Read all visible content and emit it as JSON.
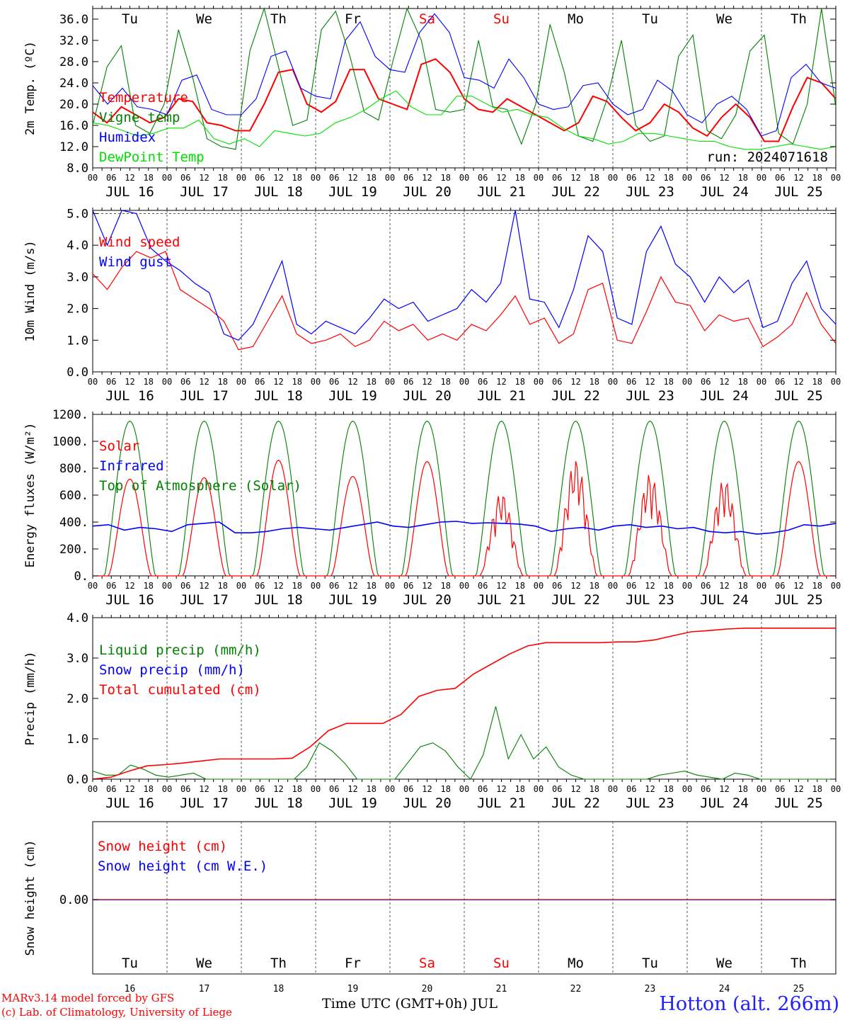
{
  "chart_data": [
    {
      "type": "line",
      "ylabel": "2m Temp. (ºC)",
      "ylim": [
        8,
        38
      ],
      "yticks": [
        "36.0",
        "32.0",
        "28.0",
        "24.0",
        "20.0",
        "16.0",
        "12.0",
        "8.0"
      ],
      "days": [
        "JUL 16",
        "JUL 17",
        "JUL 18",
        "JUL 19",
        "JUL 20",
        "JUL 21",
        "JUL 22",
        "JUL 23",
        "JUL 24",
        "JUL 25"
      ],
      "weekdays": [
        "Tu",
        "We",
        "Th",
        "Fr",
        "Sa",
        "Su",
        "Mo",
        "Tu",
        "We",
        "Th"
      ],
      "annotation": "run: 2024071618",
      "grid": "vertical dashed at 00 UTC",
      "series": [
        {
          "name": "Temperature",
          "color": "#ff0000",
          "values": [
            18.5,
            16.5,
            19.5,
            18.0,
            16.5,
            17.5,
            21.0,
            20.5,
            16.5,
            16.0,
            15.0,
            15.0,
            20.0,
            26.0,
            26.5,
            20.0,
            18.5,
            20.5,
            26.5,
            26.5,
            21.0,
            20.0,
            19.0,
            27.5,
            28.5,
            26.0,
            21.0,
            19.0,
            18.5,
            21.0,
            19.5,
            18.0,
            16.5,
            15.0,
            16.5,
            21.5,
            20.5,
            17.5,
            15.0,
            16.5,
            20.0,
            18.5,
            15.5,
            14.0,
            17.5,
            20.0,
            17.5,
            13.0,
            13.0,
            19.5,
            25.0,
            24.0,
            21.0
          ]
        },
        {
          "name": "Vigne temp",
          "color": "#008000",
          "values": [
            16.0,
            27.0,
            31.0,
            16.0,
            14.5,
            20.0,
            34.0,
            25.0,
            13.5,
            12.0,
            11.5,
            30.0,
            39.0,
            27.0,
            16.0,
            17.0,
            34.0,
            37.5,
            29.0,
            18.5,
            17.0,
            28.0,
            39.0,
            32.0,
            19.0,
            18.5,
            19.0,
            32.0,
            19.5,
            19.0,
            12.5,
            20.0,
            35.0,
            26.0,
            14.0,
            13.0,
            21.0,
            32.0,
            16.0,
            13.0,
            14.0,
            29.0,
            33.0,
            15.0,
            13.5,
            18.0,
            30.0,
            33.0,
            14.5,
            12.5,
            20.0,
            38.0,
            19.5
          ]
        },
        {
          "name": "Humidex",
          "color": "#0000ff",
          "values": [
            23.5,
            20.0,
            23.0,
            19.5,
            19.0,
            18.0,
            24.5,
            25.5,
            19.0,
            18.0,
            18.0,
            21.0,
            29.0,
            30.0,
            23.0,
            21.5,
            21.0,
            32.0,
            35.5,
            29.0,
            26.5,
            26.0,
            33.5,
            37.0,
            33.5,
            25.0,
            24.5,
            23.0,
            28.5,
            25.0,
            20.0,
            19.0,
            19.5,
            23.5,
            24.0,
            20.0,
            18.0,
            19.0,
            24.5,
            22.5,
            18.0,
            16.5,
            20.0,
            21.5,
            19.0,
            14.0,
            15.0,
            25.0,
            27.5,
            24.0,
            23.0
          ]
        },
        {
          "name": "DewPoint Temp",
          "color": "#00e000",
          "values": [
            16.5,
            16.0,
            15.0,
            14.0,
            14.5,
            15.5,
            15.5,
            17.0,
            13.5,
            12.5,
            13.5,
            12.0,
            15.0,
            14.5,
            14.0,
            14.5,
            16.5,
            17.5,
            19.0,
            21.0,
            22.5,
            19.5,
            18.0,
            18.0,
            21.5,
            21.5,
            20.0,
            18.5,
            19.0,
            18.0,
            17.5,
            15.5,
            14.0,
            13.5,
            12.5,
            13.0,
            14.5,
            14.5,
            14.0,
            13.5,
            13.0,
            13.0,
            12.0,
            11.5,
            11.5,
            12.0,
            12.5,
            12.0,
            11.5,
            12.0
          ]
        }
      ]
    },
    {
      "type": "line",
      "ylabel": "10m Wind (m/s)",
      "ylim": [
        0,
        5.1
      ],
      "yticks": [
        "5.0",
        "4.0",
        "3.0",
        "2.0",
        "1.0",
        "0.0"
      ],
      "days": [
        "JUL 16",
        "JUL 17",
        "JUL 18",
        "JUL 19",
        "JUL 20",
        "JUL 21",
        "JUL 22",
        "JUL 23",
        "JUL 24",
        "JUL 25"
      ],
      "grid": "horizontal dashed at 5.0",
      "series": [
        {
          "name": "Wind speed",
          "color": "#ff0000",
          "values": [
            3.1,
            2.6,
            3.3,
            3.8,
            3.6,
            3.8,
            2.6,
            2.3,
            2.0,
            1.6,
            0.7,
            0.8,
            1.6,
            2.4,
            1.2,
            0.9,
            1.0,
            1.2,
            0.8,
            1.0,
            1.6,
            1.3,
            1.5,
            1.0,
            1.2,
            1.0,
            1.5,
            1.3,
            1.8,
            2.4,
            1.5,
            1.7,
            0.9,
            1.2,
            2.6,
            2.8,
            1.0,
            0.9,
            1.9,
            3.0,
            2.2,
            2.1,
            1.3,
            1.8,
            1.6,
            1.7,
            0.8,
            1.1,
            1.5,
            2.5,
            1.5,
            0.9
          ]
        },
        {
          "name": "Wind gust",
          "color": "#0000ff",
          "values": [
            5.3,
            4.0,
            5.2,
            5.0,
            3.9,
            3.5,
            3.2,
            2.8,
            2.5,
            1.2,
            1.0,
            1.5,
            2.5,
            3.5,
            1.5,
            1.2,
            1.6,
            1.4,
            1.2,
            1.7,
            2.3,
            2.0,
            2.2,
            1.6,
            1.8,
            2.0,
            2.6,
            2.2,
            2.8,
            5.1,
            2.3,
            2.2,
            1.4,
            2.6,
            4.3,
            3.8,
            1.7,
            1.5,
            3.8,
            4.6,
            3.4,
            3.0,
            2.2,
            3.0,
            2.5,
            2.9,
            1.4,
            1.6,
            2.8,
            3.5,
            2.0,
            1.5
          ]
        }
      ]
    },
    {
      "type": "line",
      "ylabel": "Energy fluxes (W/m²)",
      "ylim": [
        0,
        1200
      ],
      "yticks": [
        "1200.",
        "1000.",
        "800.",
        "600.",
        "400.",
        "200.",
        "0."
      ],
      "days": [
        "JUL 16",
        "JUL 17",
        "JUL 18",
        "JUL 19",
        "JUL 20",
        "JUL 21",
        "JUL 22",
        "JUL 23",
        "JUL 24",
        "JUL 25"
      ],
      "series": [
        {
          "name": "Solar",
          "color": "#ff0000",
          "day_peaks": [
            720,
            730,
            860,
            740,
            850,
            620,
            870,
            760,
            720,
            850
          ]
        },
        {
          "name": "Infrared",
          "color": "#0000ff",
          "values": [
            370,
            380,
            340,
            360,
            350,
            330,
            380,
            390,
            400,
            320,
            320,
            330,
            350,
            360,
            350,
            340,
            360,
            380,
            400,
            370,
            360,
            380,
            400,
            405,
            390,
            395,
            390,
            385,
            370,
            330,
            350,
            360,
            340,
            370,
            380,
            360,
            370,
            350,
            360,
            330,
            320,
            330,
            310,
            320,
            340,
            380,
            370,
            390
          ]
        },
        {
          "name": "Top of Atmosphere (Solar)",
          "color": "#008000",
          "day_peak": 1150
        }
      ]
    },
    {
      "type": "line",
      "ylabel": "Precip (mm/h)",
      "ylim": [
        0,
        4.0
      ],
      "yticks": [
        "4.0",
        "3.0",
        "2.0",
        "1.0",
        "0.0"
      ],
      "days": [
        "JUL 16",
        "JUL 17",
        "JUL 18",
        "JUL 19",
        "JUL 20",
        "JUL 21",
        "JUL 22",
        "JUL 23",
        "JUL 24",
        "JUL 25"
      ],
      "series": [
        {
          "name": "Liquid precip (mm/h)",
          "color": "#008000",
          "values": [
            0.2,
            0.1,
            0.1,
            0.35,
            0.25,
            0.1,
            0.05,
            0.1,
            0.15,
            0,
            0,
            0,
            0,
            0,
            0,
            0,
            0,
            0.3,
            0.9,
            0.7,
            0.4,
            0,
            0,
            0,
            0,
            0.4,
            0.8,
            0.9,
            0.7,
            0.3,
            0,
            0.6,
            1.8,
            0.5,
            1.1,
            0.5,
            0.8,
            0.3,
            0.1,
            0,
            0,
            0,
            0,
            0,
            0,
            0.1,
            0.15,
            0.2,
            0.1,
            0.05,
            0,
            0.15,
            0.1,
            0,
            0,
            0,
            0,
            0,
            0,
            0
          ]
        },
        {
          "name": "Snow precip (mm/h)",
          "color": "#0000ff",
          "values": []
        },
        {
          "name": "Total cumulated (cm)",
          "color": "#ff0000",
          "values": [
            0.0,
            0.05,
            0.2,
            0.33,
            0.36,
            0.4,
            0.45,
            0.5,
            0.5,
            0.5,
            0.5,
            0.52,
            0.8,
            1.2,
            1.38,
            1.38,
            1.38,
            1.6,
            2.05,
            2.2,
            2.25,
            2.6,
            2.85,
            3.1,
            3.3,
            3.38,
            3.38,
            3.38,
            3.38,
            3.4,
            3.4,
            3.45,
            3.55,
            3.65,
            3.68,
            3.72,
            3.74,
            3.74,
            3.74,
            3.74,
            3.74,
            3.74
          ]
        }
      ]
    },
    {
      "type": "line",
      "ylabel": "Snow height (cm)",
      "yticks": [
        "0.00"
      ],
      "day_numbers": [
        "16",
        "17",
        "18",
        "19",
        "20",
        "21",
        "22",
        "23",
        "24",
        "25"
      ],
      "weekdays": [
        "Tu",
        "We",
        "Th",
        "Fr",
        "Sa",
        "Su",
        "Mo",
        "Tu",
        "We",
        "Th"
      ],
      "xlabel": "Time UTC (GMT+0h) JUL",
      "series": [
        {
          "name": "Snow height (cm)",
          "color": "#ff0000",
          "values": [
            0,
            0
          ]
        },
        {
          "name": "Snow height (cm W.E.)",
          "color": "#0000ff",
          "values": [
            0,
            0
          ]
        }
      ]
    }
  ],
  "hour_ticks": [
    "00",
    "06",
    "12",
    "18"
  ],
  "weekend_color": "#ff0000",
  "footer": {
    "line1": "MARv3.14 model forced by GFS",
    "line2": "(c) Lab. of Climatology, University of Liege",
    "station": "Hotton (alt. 266m)"
  }
}
